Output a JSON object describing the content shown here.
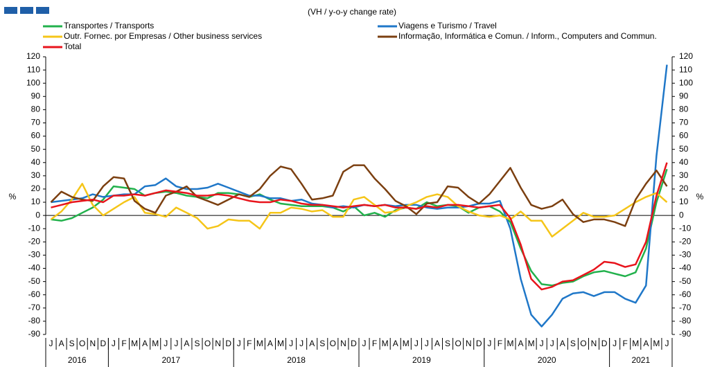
{
  "chart_data": {
    "type": "line",
    "subtitle": "(VH / y-o-y change rate)",
    "y_label": "%",
    "categories": [
      "J",
      "A",
      "S",
      "O",
      "N",
      "D",
      "J",
      "F",
      "M",
      "A",
      "M",
      "J",
      "J",
      "A",
      "S",
      "O",
      "N",
      "D",
      "J",
      "F",
      "M",
      "A",
      "M",
      "J",
      "J",
      "A",
      "S",
      "O",
      "N",
      "D",
      "J",
      "F",
      "M",
      "A",
      "M",
      "J",
      "J",
      "A",
      "S",
      "O",
      "N",
      "D",
      "J",
      "F",
      "M",
      "A",
      "M",
      "J",
      "J",
      "A",
      "S",
      "O",
      "N",
      "D",
      "J",
      "F",
      "M",
      "A",
      "M",
      "J"
    ],
    "years": [
      {
        "label": "2016",
        "months": 6
      },
      {
        "label": "2017",
        "months": 12
      },
      {
        "label": "2018",
        "months": 12
      },
      {
        "label": "2019",
        "months": 12
      },
      {
        "label": "2020",
        "months": 12
      },
      {
        "label": "2021",
        "months": 6
      }
    ],
    "ylim": [
      -90,
      120
    ],
    "yticks": [
      -90,
      -80,
      -70,
      -60,
      -50,
      -40,
      -30,
      -20,
      -10,
      0,
      10,
      20,
      30,
      40,
      50,
      60,
      70,
      80,
      90,
      100,
      110,
      120
    ],
    "series": [
      {
        "name": "Transportes / Transports",
        "color": "#22b14c",
        "values": [
          -3,
          -4,
          -2,
          2,
          6,
          12,
          22,
          21,
          20,
          15,
          17,
          18,
          17,
          15,
          14,
          13,
          17,
          17,
          16,
          14,
          16,
          12,
          9,
          8,
          7,
          7,
          7,
          6,
          3,
          7,
          0,
          2,
          -1,
          4,
          6,
          5,
          10,
          7,
          8,
          7,
          2,
          6,
          7,
          3,
          -5,
          -25,
          -42,
          -52,
          -53,
          -51,
          -50,
          -46,
          -43,
          -42,
          -44,
          -46,
          -43,
          -25,
          10,
          35
        ]
      },
      {
        "name": "Viagens e Turismo / Travel",
        "color": "#1f77c8",
        "values": [
          10,
          11,
          12,
          13,
          16,
          14,
          15,
          16,
          16,
          22,
          23,
          28,
          22,
          20,
          20,
          21,
          24,
          21,
          18,
          15,
          15,
          13,
          13,
          11,
          12,
          9,
          8,
          6,
          7,
          6,
          8,
          7,
          8,
          7,
          8,
          8,
          6,
          5,
          6,
          6,
          7,
          9,
          9,
          11,
          -10,
          -48,
          -75,
          -84,
          -75,
          -63,
          -59,
          -58,
          -61,
          -58,
          -58,
          -63,
          -66,
          -53,
          45,
          114
        ]
      },
      {
        "name": "Outr. Fornec. por Empresas / Other business services",
        "color": "#f5c518",
        "values": [
          -3,
          3,
          12,
          24,
          8,
          0,
          5,
          10,
          14,
          2,
          1,
          -1,
          6,
          2,
          -2,
          -10,
          -8,
          -3,
          -4,
          -4,
          -10,
          2,
          2,
          6,
          5,
          3,
          4,
          -1,
          -1,
          12,
          14,
          8,
          2,
          3,
          7,
          10,
          14,
          16,
          14,
          7,
          3,
          0,
          -1,
          0,
          -3,
          3,
          -4,
          -4,
          -16,
          -10,
          -4,
          2,
          -1,
          -1,
          0,
          5,
          10,
          14,
          17,
          10
        ]
      },
      {
        "name": "Informação, Informática e Comun. / Inform., Computers and Commun.",
        "color": "#7b3f10",
        "values": [
          10,
          18,
          14,
          12,
          11,
          22,
          29,
          28,
          11,
          5,
          2,
          15,
          18,
          22,
          14,
          11,
          8,
          12,
          16,
          14,
          20,
          30,
          37,
          35,
          24,
          12,
          13,
          15,
          33,
          38,
          38,
          28,
          20,
          11,
          7,
          1,
          9,
          10,
          22,
          21,
          14,
          9,
          16,
          26,
          36,
          21,
          8,
          5,
          7,
          12,
          1,
          -5,
          -3,
          -3,
          -5,
          -8,
          12,
          24,
          34,
          22
        ]
      },
      {
        "name": "Total",
        "color": "#e8141c",
        "values": [
          6,
          8,
          10,
          11,
          12,
          10,
          15,
          15,
          16,
          15,
          17,
          19,
          18,
          17,
          15,
          15,
          16,
          15,
          13,
          11,
          10,
          10,
          12,
          11,
          9,
          8,
          8,
          7,
          6,
          7,
          8,
          7,
          8,
          6,
          6,
          5,
          7,
          6,
          8,
          8,
          7,
          6,
          7,
          8,
          -2,
          -22,
          -48,
          -56,
          -54,
          -50,
          -49,
          -45,
          -41,
          -35,
          -36,
          -39,
          -37,
          -20,
          15,
          40
        ]
      }
    ]
  }
}
